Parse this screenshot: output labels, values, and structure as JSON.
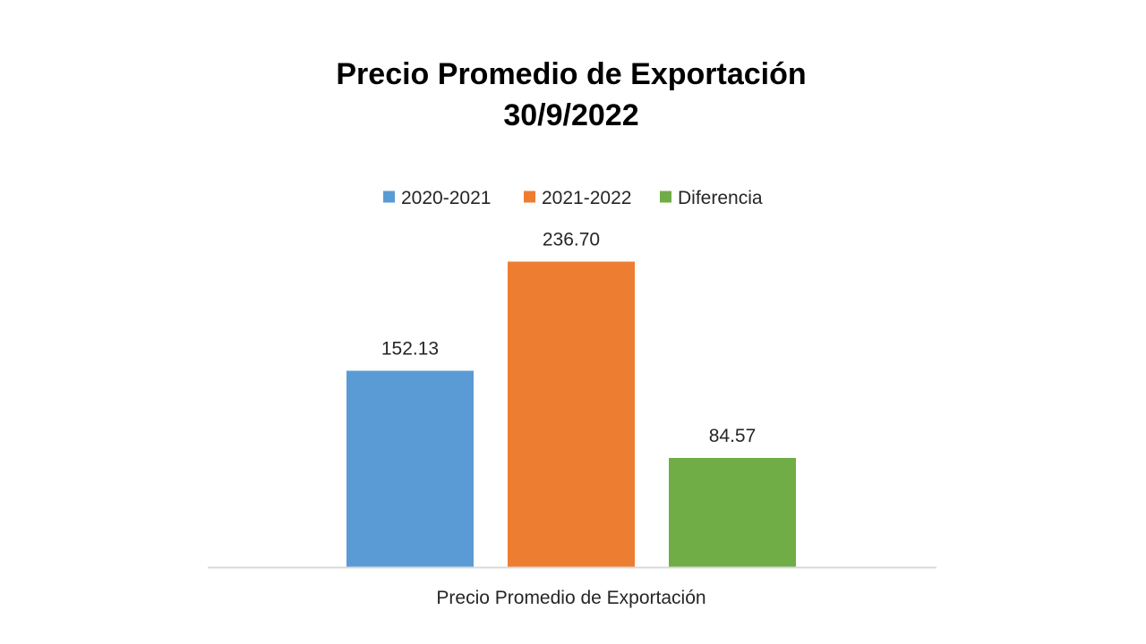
{
  "title_line1": "Precio Promedio de Exportación",
  "title_line2": "30/9/2022",
  "chart_data": {
    "type": "bar",
    "title": "Precio Promedio de Exportación 30/9/2022",
    "categories": [
      "Precio Promedio de Exportación"
    ],
    "series": [
      {
        "name": "2020-2021",
        "values": [
          152.13
        ],
        "color": "#5B9BD5",
        "label": "152.13"
      },
      {
        "name": "2021-2022",
        "values": [
          236.7
        ],
        "color": "#ED7D31",
        "label": "236.70"
      },
      {
        "name": "Diferencia",
        "values": [
          84.57
        ],
        "color": "#70AD47",
        "label": "84.57"
      }
    ],
    "ylim": [
      0,
      300
    ],
    "grid": false,
    "legend": "top-center"
  }
}
